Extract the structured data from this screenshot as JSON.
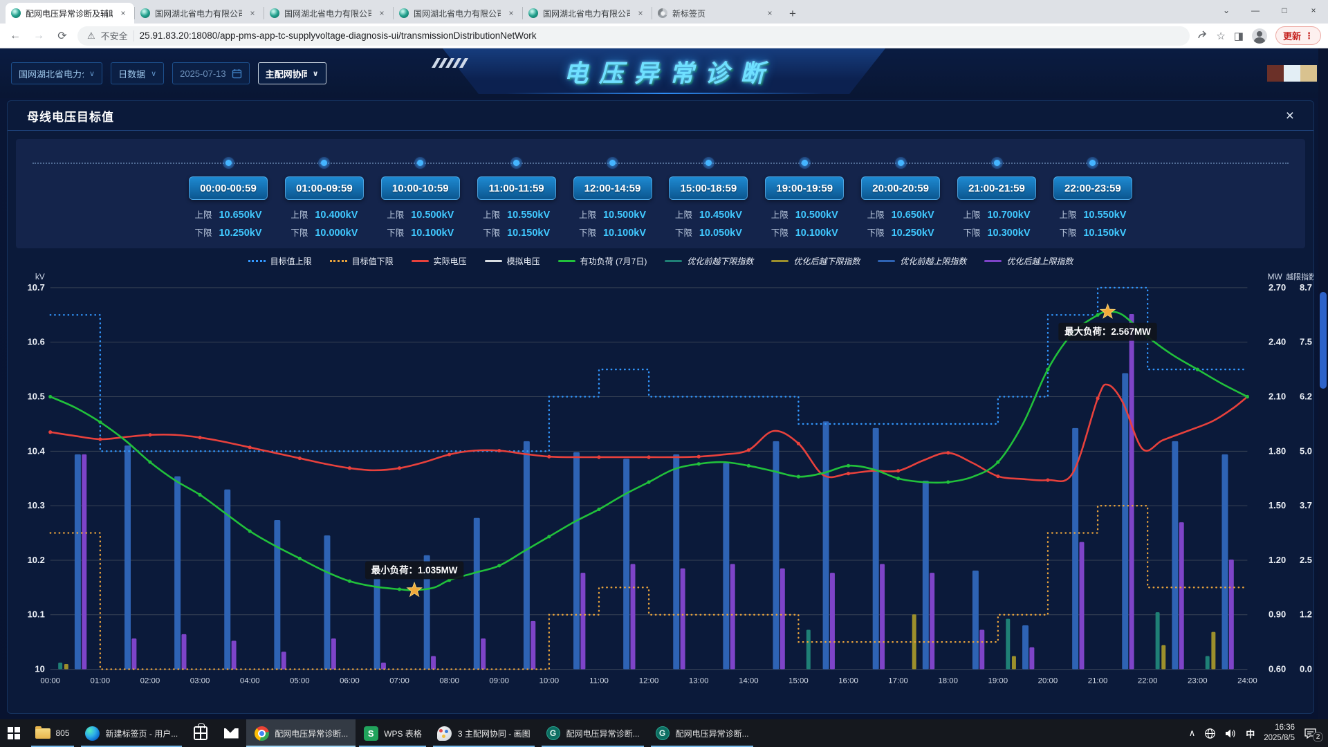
{
  "browser": {
    "tabs": [
      {
        "title": "配网电压异常诊断及辅助治理",
        "active": true,
        "favicon": "grid-logo"
      },
      {
        "title": "国网湖北省电力有限公司-首页",
        "active": false,
        "favicon": "grid-logo"
      },
      {
        "title": "国网湖北省电力有限公司荆州供电",
        "active": false,
        "favicon": "grid-logo"
      },
      {
        "title": "国网湖北省电力有限公司荆州供电",
        "active": false,
        "favicon": "grid-logo"
      },
      {
        "title": "国网湖北省电力有限公司荆州供电",
        "active": false,
        "favicon": "grid-logo"
      },
      {
        "title": "新标签页",
        "active": false,
        "favicon": "chrome-logo"
      }
    ],
    "close_glyph": "×",
    "new_tab_glyph": "+",
    "window_controls": {
      "tab_search": "⌄",
      "minimize": "—",
      "maximize": "□",
      "close": "×"
    },
    "nav": {
      "back": "←",
      "forward": "→",
      "reload": "⟳"
    },
    "security_warning_glyph": "⚠",
    "security_warning": "不安全",
    "url": "25.91.83.20:18080/app-pms-app-tc-supplyvoltage-diagnosis-ui/transmissionDistributionNetWork",
    "star_glyph": "☆",
    "sidebar_glyph": "◨",
    "update_label": "更新",
    "menu_glyph": "⋮"
  },
  "header": {
    "title": "电压异常诊断",
    "org_select": "国网湖北省电力公司",
    "data_type_select": "日数据",
    "date_select": "2025-07-13",
    "network_select": "主配网协同",
    "chevron_glyph": "∨",
    "swatch_colors": [
      "#6b3028",
      "#e3eef5",
      "#d9c28f"
    ]
  },
  "panel": {
    "title": "母线电压目标值",
    "close_glyph": "×",
    "upper_label": "上限",
    "lower_label": "下限",
    "periods": [
      {
        "range": "00:00-00:59",
        "upper": "10.650kV",
        "lower": "10.250kV"
      },
      {
        "range": "01:00-09:59",
        "upper": "10.400kV",
        "lower": "10.000kV"
      },
      {
        "range": "10:00-10:59",
        "upper": "10.500kV",
        "lower": "10.100kV"
      },
      {
        "range": "11:00-11:59",
        "upper": "10.550kV",
        "lower": "10.150kV"
      },
      {
        "range": "12:00-14:59",
        "upper": "10.500kV",
        "lower": "10.100kV"
      },
      {
        "range": "15:00-18:59",
        "upper": "10.450kV",
        "lower": "10.050kV"
      },
      {
        "range": "19:00-19:59",
        "upper": "10.500kV",
        "lower": "10.100kV"
      },
      {
        "range": "20:00-20:59",
        "upper": "10.650kV",
        "lower": "10.250kV"
      },
      {
        "range": "21:00-21:59",
        "upper": "10.700kV",
        "lower": "10.300kV"
      },
      {
        "range": "22:00-23:59",
        "upper": "10.550kV",
        "lower": "10.150kV"
      }
    ]
  },
  "chart_data": {
    "type": "combo",
    "x_ticks": [
      "00:00",
      "01:00",
      "02:00",
      "03:00",
      "04:00",
      "05:00",
      "06:00",
      "07:00",
      "08:00",
      "09:00",
      "10:00",
      "11:00",
      "12:00",
      "13:00",
      "14:00",
      "15:00",
      "16:00",
      "17:00",
      "18:00",
      "19:00",
      "20:00",
      "21:00",
      "22:00",
      "23:00",
      "24:00"
    ],
    "y_left": {
      "label": "kV",
      "min": 10.0,
      "max": 10.7,
      "ticks": [
        "10.7",
        "10.6",
        "10.5",
        "10.4",
        "10.3",
        "10.2",
        "10.1",
        "10"
      ]
    },
    "y_mw": {
      "label": "MW",
      "min": 0.6,
      "max": 2.7,
      "ticks": [
        "2.70",
        "2.40",
        "2.10",
        "1.80",
        "1.50",
        "1.20",
        "0.90",
        "0.60"
      ]
    },
    "y_idx": {
      "label": "越限指数",
      "min": 0,
      "max": 8.7,
      "ticks": [
        "8.7",
        "7.5",
        "6.2",
        "5.0",
        "3.7",
        "2.5",
        "1.2",
        "0.0"
      ]
    },
    "series": [
      {
        "key": "target_upper",
        "name": "目标值上限",
        "type": "step",
        "style": "dotted",
        "color": "#3398ff",
        "axis": "kv",
        "segments": [
          [
            0,
            1,
            10.65
          ],
          [
            1,
            10,
            10.4
          ],
          [
            10,
            11,
            10.5
          ],
          [
            11,
            12,
            10.55
          ],
          [
            12,
            15,
            10.5
          ],
          [
            15,
            19,
            10.45
          ],
          [
            19,
            20,
            10.5
          ],
          [
            20,
            21,
            10.65
          ],
          [
            21,
            22,
            10.7
          ],
          [
            22,
            24,
            10.55
          ]
        ]
      },
      {
        "key": "target_lower",
        "name": "目标值下限",
        "type": "step",
        "style": "dotted",
        "color": "#e9a33c",
        "axis": "kv",
        "segments": [
          [
            0,
            1,
            10.25
          ],
          [
            1,
            10,
            10.0
          ],
          [
            10,
            11,
            10.1
          ],
          [
            11,
            12,
            10.15
          ],
          [
            12,
            15,
            10.1
          ],
          [
            15,
            19,
            10.05
          ],
          [
            19,
            20,
            10.1
          ],
          [
            20,
            21,
            10.25
          ],
          [
            21,
            22,
            10.3
          ],
          [
            22,
            24,
            10.15
          ]
        ]
      },
      {
        "key": "actual_v",
        "name": "实际电压",
        "type": "line",
        "color": "#e8413c",
        "axis": "kv",
        "points": [
          [
            0,
            10.435
          ],
          [
            0.5,
            10.428
          ],
          [
            1,
            10.422
          ],
          [
            1.5,
            10.426
          ],
          [
            2,
            10.43
          ],
          [
            2.5,
            10.43
          ],
          [
            3,
            10.425
          ],
          [
            3.5,
            10.417
          ],
          [
            4,
            10.407
          ],
          [
            4.5,
            10.397
          ],
          [
            5,
            10.387
          ],
          [
            5.5,
            10.377
          ],
          [
            6,
            10.369
          ],
          [
            6.5,
            10.365
          ],
          [
            7,
            10.369
          ],
          [
            7.5,
            10.38
          ],
          [
            8,
            10.394
          ],
          [
            8.5,
            10.401
          ],
          [
            9,
            10.401
          ],
          [
            9.5,
            10.395
          ],
          [
            10,
            10.39
          ],
          [
            10.5,
            10.389
          ],
          [
            11,
            10.389
          ],
          [
            11.5,
            10.389
          ],
          [
            12,
            10.389
          ],
          [
            12.5,
            10.389
          ],
          [
            13,
            10.39
          ],
          [
            13.5,
            10.394
          ],
          [
            14,
            10.402
          ],
          [
            14.5,
            10.437
          ],
          [
            15,
            10.414
          ],
          [
            15.5,
            10.356
          ],
          [
            16,
            10.359
          ],
          [
            16.5,
            10.364
          ],
          [
            17,
            10.364
          ],
          [
            17.5,
            10.383
          ],
          [
            18,
            10.397
          ],
          [
            18.5,
            10.378
          ],
          [
            19,
            10.354
          ],
          [
            19.5,
            10.349
          ],
          [
            20,
            10.347
          ],
          [
            20.5,
            10.36
          ],
          [
            21,
            10.497
          ],
          [
            21.2,
            10.522
          ],
          [
            21.5,
            10.49
          ],
          [
            21.9,
            10.404
          ],
          [
            22.3,
            10.42
          ],
          [
            22.8,
            10.437
          ],
          [
            23.3,
            10.455
          ],
          [
            23.7,
            10.478
          ],
          [
            24,
            10.5
          ]
        ]
      },
      {
        "key": "sim_v",
        "name": "模拟电压",
        "type": "line",
        "color": "#d8dde2",
        "axis": "kv",
        "points": []
      },
      {
        "key": "load",
        "name": "有功负荷 (7月7日)",
        "type": "line",
        "color": "#21c13b",
        "axis": "mw",
        "points": [
          [
            0,
            2.1
          ],
          [
            0.5,
            2.04
          ],
          [
            1,
            1.96
          ],
          [
            1.5,
            1.86
          ],
          [
            2,
            1.74
          ],
          [
            2.5,
            1.64
          ],
          [
            3,
            1.56
          ],
          [
            3.5,
            1.46
          ],
          [
            4,
            1.36
          ],
          [
            4.5,
            1.28
          ],
          [
            5,
            1.21
          ],
          [
            5.5,
            1.14
          ],
          [
            6,
            1.085
          ],
          [
            6.5,
            1.055
          ],
          [
            7,
            1.04
          ],
          [
            7.3,
            1.035
          ],
          [
            7.7,
            1.05
          ],
          [
            8,
            1.09
          ],
          [
            8.5,
            1.13
          ],
          [
            9,
            1.17
          ],
          [
            9.5,
            1.25
          ],
          [
            10,
            1.33
          ],
          [
            10.5,
            1.41
          ],
          [
            11,
            1.48
          ],
          [
            11.5,
            1.56
          ],
          [
            12,
            1.63
          ],
          [
            12.5,
            1.7
          ],
          [
            13,
            1.73
          ],
          [
            13.5,
            1.74
          ],
          [
            14,
            1.72
          ],
          [
            14.5,
            1.69
          ],
          [
            15,
            1.66
          ],
          [
            15.5,
            1.68
          ],
          [
            16,
            1.72
          ],
          [
            16.5,
            1.7
          ],
          [
            17,
            1.65
          ],
          [
            17.5,
            1.63
          ],
          [
            18,
            1.63
          ],
          [
            18.5,
            1.66
          ],
          [
            19,
            1.74
          ],
          [
            19.5,
            1.95
          ],
          [
            20,
            2.25
          ],
          [
            20.5,
            2.45
          ],
          [
            21,
            2.55
          ],
          [
            21.2,
            2.567
          ],
          [
            21.5,
            2.55
          ],
          [
            22,
            2.43
          ],
          [
            22.5,
            2.33
          ],
          [
            23,
            2.25
          ],
          [
            23.5,
            2.17
          ],
          [
            24,
            2.1
          ]
        ]
      },
      {
        "key": "pre_lower_idx",
        "name": "优化前越下限指数",
        "type": "bar",
        "color": "#1f8076",
        "axis": "idx",
        "values": [
          0.15,
          0,
          0,
          0,
          0,
          0,
          0,
          0,
          0,
          0,
          0,
          0,
          0,
          0,
          0,
          0.9,
          0,
          0,
          0,
          1.15,
          0,
          0,
          1.3,
          0.3
        ]
      },
      {
        "key": "post_lower_idx",
        "name": "优化后越下限指数",
        "type": "bar",
        "color": "#9c8f2c",
        "axis": "idx",
        "values": [
          0.12,
          0,
          0,
          0,
          0,
          0,
          0,
          0,
          0,
          0,
          0,
          0,
          0,
          0,
          0,
          0,
          0,
          1.25,
          0,
          0.3,
          0,
          0,
          0.55,
          0.85
        ]
      },
      {
        "key": "pre_upper_idx",
        "name": "优化前越上限指数",
        "type": "bar",
        "color": "#2e63b4",
        "axis": "idx",
        "values": [
          4.9,
          5.1,
          4.4,
          4.1,
          3.4,
          3.05,
          2.1,
          2.6,
          3.45,
          5.2,
          4.95,
          4.8,
          4.9,
          4.7,
          5.2,
          5.65,
          5.5,
          4.3,
          2.25,
          1.0,
          5.5,
          6.75,
          5.2,
          4.9
        ]
      },
      {
        "key": "post_upper_idx",
        "name": "优化后越上限指数",
        "type": "bar",
        "color": "#7e44c8",
        "axis": "idx",
        "values": [
          4.9,
          0.7,
          0.8,
          0.65,
          0.4,
          0.7,
          0.15,
          0.3,
          0.7,
          1.1,
          2.2,
          2.4,
          2.3,
          2.4,
          2.3,
          2.2,
          2.4,
          2.2,
          0.9,
          0.5,
          2.9,
          8.1,
          3.35,
          2.5
        ]
      }
    ],
    "annotations": [
      {
        "text": "最小负荷：1.035MW",
        "t": 7.3,
        "v": 1.035,
        "axis": "mw",
        "placement": "above"
      },
      {
        "text": "最大负荷：2.567MW",
        "t": 21.2,
        "v": 2.567,
        "axis": "mw",
        "placement": "below"
      }
    ],
    "grid": true,
    "legend_position": "top"
  },
  "taskbar": {
    "items": [
      {
        "icon": "folder",
        "label": "805",
        "open": true,
        "active": false
      },
      {
        "icon": "edge",
        "label": "新建标签页 - 用户...",
        "open": true,
        "active": false
      },
      {
        "icon": "store",
        "label": "",
        "open": false,
        "active": false
      },
      {
        "icon": "mail",
        "label": "",
        "open": false,
        "active": false
      },
      {
        "icon": "chrome",
        "label": "配网电压异常诊断...",
        "open": true,
        "active": true
      },
      {
        "icon": "wps",
        "label": "WPS 表格",
        "open": true,
        "active": false
      },
      {
        "icon": "paint",
        "label": "3 主配网协同 - 画图",
        "open": true,
        "active": false
      },
      {
        "icon": "g",
        "label": "配网电压异常诊断...",
        "open": true,
        "active": false
      },
      {
        "icon": "g",
        "label": "配网电压异常诊断...",
        "open": true,
        "active": false
      }
    ],
    "tray": {
      "chevron": "∧",
      "ime": "中",
      "time": "16:36",
      "date": "2025/8/5",
      "badge": "2"
    }
  }
}
